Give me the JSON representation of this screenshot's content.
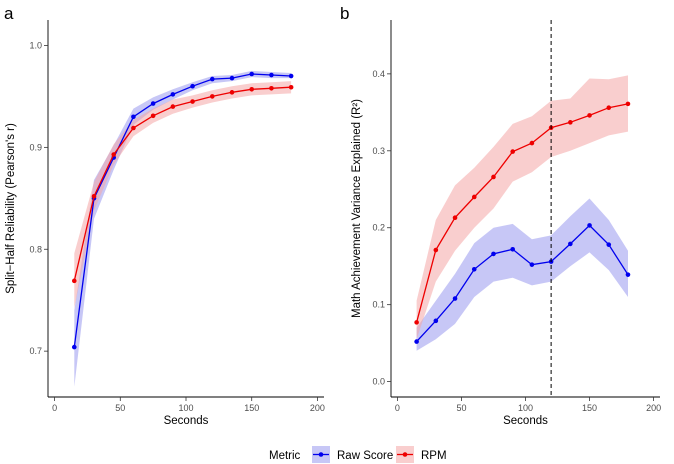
{
  "panels": [
    {
      "letter": "a",
      "xlabel": "Seconds",
      "ylabel": "Split−Half Reliability (Pearson's r)",
      "xlim": [
        -5,
        205
      ],
      "ylim": [
        0.655,
        1.025
      ],
      "xticks": [
        0,
        50,
        100,
        150,
        200
      ],
      "xtick_labels": [
        "0",
        "50",
        "100",
        "150",
        "200"
      ],
      "yticks": [
        0.7,
        0.8,
        0.9,
        1.0
      ],
      "ytick_labels": [
        "0.7",
        "0.8",
        "0.9",
        "1.0"
      ],
      "x": [
        15,
        30,
        45,
        60,
        75,
        90,
        105,
        120,
        135,
        150,
        165,
        180
      ],
      "series": [
        {
          "name": "Raw Score",
          "color": "#0000ee",
          "fill": "#9999ee",
          "values": [
            0.704,
            0.85,
            0.89,
            0.93,
            0.943,
            0.952,
            0.96,
            0.967,
            0.968,
            0.972,
            0.971,
            0.97
          ],
          "lower": [
            0.665,
            0.83,
            0.878,
            0.922,
            0.937,
            0.947,
            0.956,
            0.963,
            0.965,
            0.969,
            0.968,
            0.968
          ],
          "upper": [
            0.74,
            0.868,
            0.902,
            0.938,
            0.949,
            0.957,
            0.964,
            0.97,
            0.971,
            0.975,
            0.974,
            0.973
          ]
        },
        {
          "name": "RPM",
          "color": "#ee0000",
          "fill": "#f4a6a6",
          "values": [
            0.769,
            0.852,
            0.893,
            0.919,
            0.931,
            0.94,
            0.945,
            0.95,
            0.954,
            0.957,
            0.958,
            0.959
          ],
          "lower": [
            0.742,
            0.838,
            0.883,
            0.911,
            0.924,
            0.933,
            0.939,
            0.944,
            0.948,
            0.951,
            0.952,
            0.953
          ],
          "upper": [
            0.796,
            0.866,
            0.903,
            0.927,
            0.938,
            0.947,
            0.951,
            0.956,
            0.96,
            0.963,
            0.964,
            0.965
          ]
        }
      ]
    },
    {
      "letter": "b",
      "xlabel": "Seconds",
      "ylabel": "Math Achievement Variance Explained (R²)",
      "xlim": [
        -5,
        205
      ],
      "ylim": [
        -0.02,
        0.47
      ],
      "xticks": [
        0,
        50,
        100,
        150,
        200
      ],
      "xtick_labels": [
        "0",
        "50",
        "100",
        "150",
        "200"
      ],
      "yticks": [
        0.0,
        0.1,
        0.2,
        0.3,
        0.4
      ],
      "ytick_labels": [
        "0.0",
        "0.1",
        "0.2",
        "0.3",
        "0.4"
      ],
      "vline": 120,
      "x": [
        15,
        30,
        45,
        60,
        75,
        90,
        105,
        120,
        135,
        150,
        165,
        180
      ],
      "series": [
        {
          "name": "Raw Score",
          "color": "#0000ee",
          "fill": "#9999ee",
          "values": [
            0.052,
            0.079,
            0.108,
            0.146,
            0.166,
            0.172,
            0.152,
            0.156,
            0.179,
            0.203,
            0.178,
            0.139
          ],
          "lower": [
            0.04,
            0.055,
            0.075,
            0.11,
            0.13,
            0.135,
            0.125,
            0.13,
            0.15,
            0.168,
            0.145,
            0.11
          ],
          "upper": [
            0.07,
            0.105,
            0.14,
            0.18,
            0.2,
            0.205,
            0.185,
            0.19,
            0.215,
            0.238,
            0.21,
            0.17
          ]
        },
        {
          "name": "RPM",
          "color": "#ee0000",
          "fill": "#f4a6a6",
          "values": [
            0.077,
            0.171,
            0.213,
            0.24,
            0.266,
            0.299,
            0.31,
            0.33,
            0.337,
            0.346,
            0.356,
            0.361
          ],
          "lower": [
            0.055,
            0.13,
            0.17,
            0.2,
            0.225,
            0.26,
            0.272,
            0.292,
            0.3,
            0.31,
            0.32,
            0.325
          ],
          "upper": [
            0.105,
            0.21,
            0.255,
            0.278,
            0.305,
            0.335,
            0.345,
            0.365,
            0.368,
            0.394,
            0.393,
            0.398
          ]
        }
      ]
    }
  ],
  "legend": {
    "title": "Metric",
    "entries": [
      {
        "label": "Raw Score",
        "color": "#0000ee",
        "fill": "#9999ee"
      },
      {
        "label": "RPM",
        "color": "#ee0000",
        "fill": "#f4a6a6"
      }
    ]
  },
  "chart_data": [
    {
      "type": "line",
      "title": "a",
      "xlabel": "Seconds",
      "ylabel": "Split−Half Reliability (Pearson's r)",
      "x": [
        15,
        30,
        45,
        60,
        75,
        90,
        105,
        120,
        135,
        150,
        165,
        180
      ],
      "series": [
        {
          "name": "Raw Score",
          "values": [
            0.704,
            0.85,
            0.89,
            0.93,
            0.943,
            0.952,
            0.96,
            0.967,
            0.968,
            0.972,
            0.971,
            0.97
          ]
        },
        {
          "name": "RPM",
          "values": [
            0.769,
            0.852,
            0.893,
            0.919,
            0.931,
            0.94,
            0.945,
            0.95,
            0.954,
            0.957,
            0.958,
            0.959
          ]
        }
      ],
      "xlim": [
        -5,
        205
      ],
      "ylim": [
        0.655,
        1.025
      ],
      "grid": false,
      "legend": "bottom"
    },
    {
      "type": "line",
      "title": "b",
      "xlabel": "Seconds",
      "ylabel": "Math Achievement Variance Explained (R²)",
      "x": [
        15,
        30,
        45,
        60,
        75,
        90,
        105,
        120,
        135,
        150,
        165,
        180
      ],
      "series": [
        {
          "name": "Raw Score",
          "values": [
            0.052,
            0.079,
            0.108,
            0.146,
            0.166,
            0.172,
            0.152,
            0.156,
            0.179,
            0.203,
            0.178,
            0.139
          ]
        },
        {
          "name": "RPM",
          "values": [
            0.077,
            0.171,
            0.213,
            0.24,
            0.266,
            0.299,
            0.31,
            0.33,
            0.337,
            0.346,
            0.356,
            0.361
          ]
        }
      ],
      "annotations": [
        "dashed vertical line at x = 120"
      ],
      "xlim": [
        -5,
        205
      ],
      "ylim": [
        -0.02,
        0.47
      ],
      "grid": false,
      "legend": "bottom"
    }
  ]
}
